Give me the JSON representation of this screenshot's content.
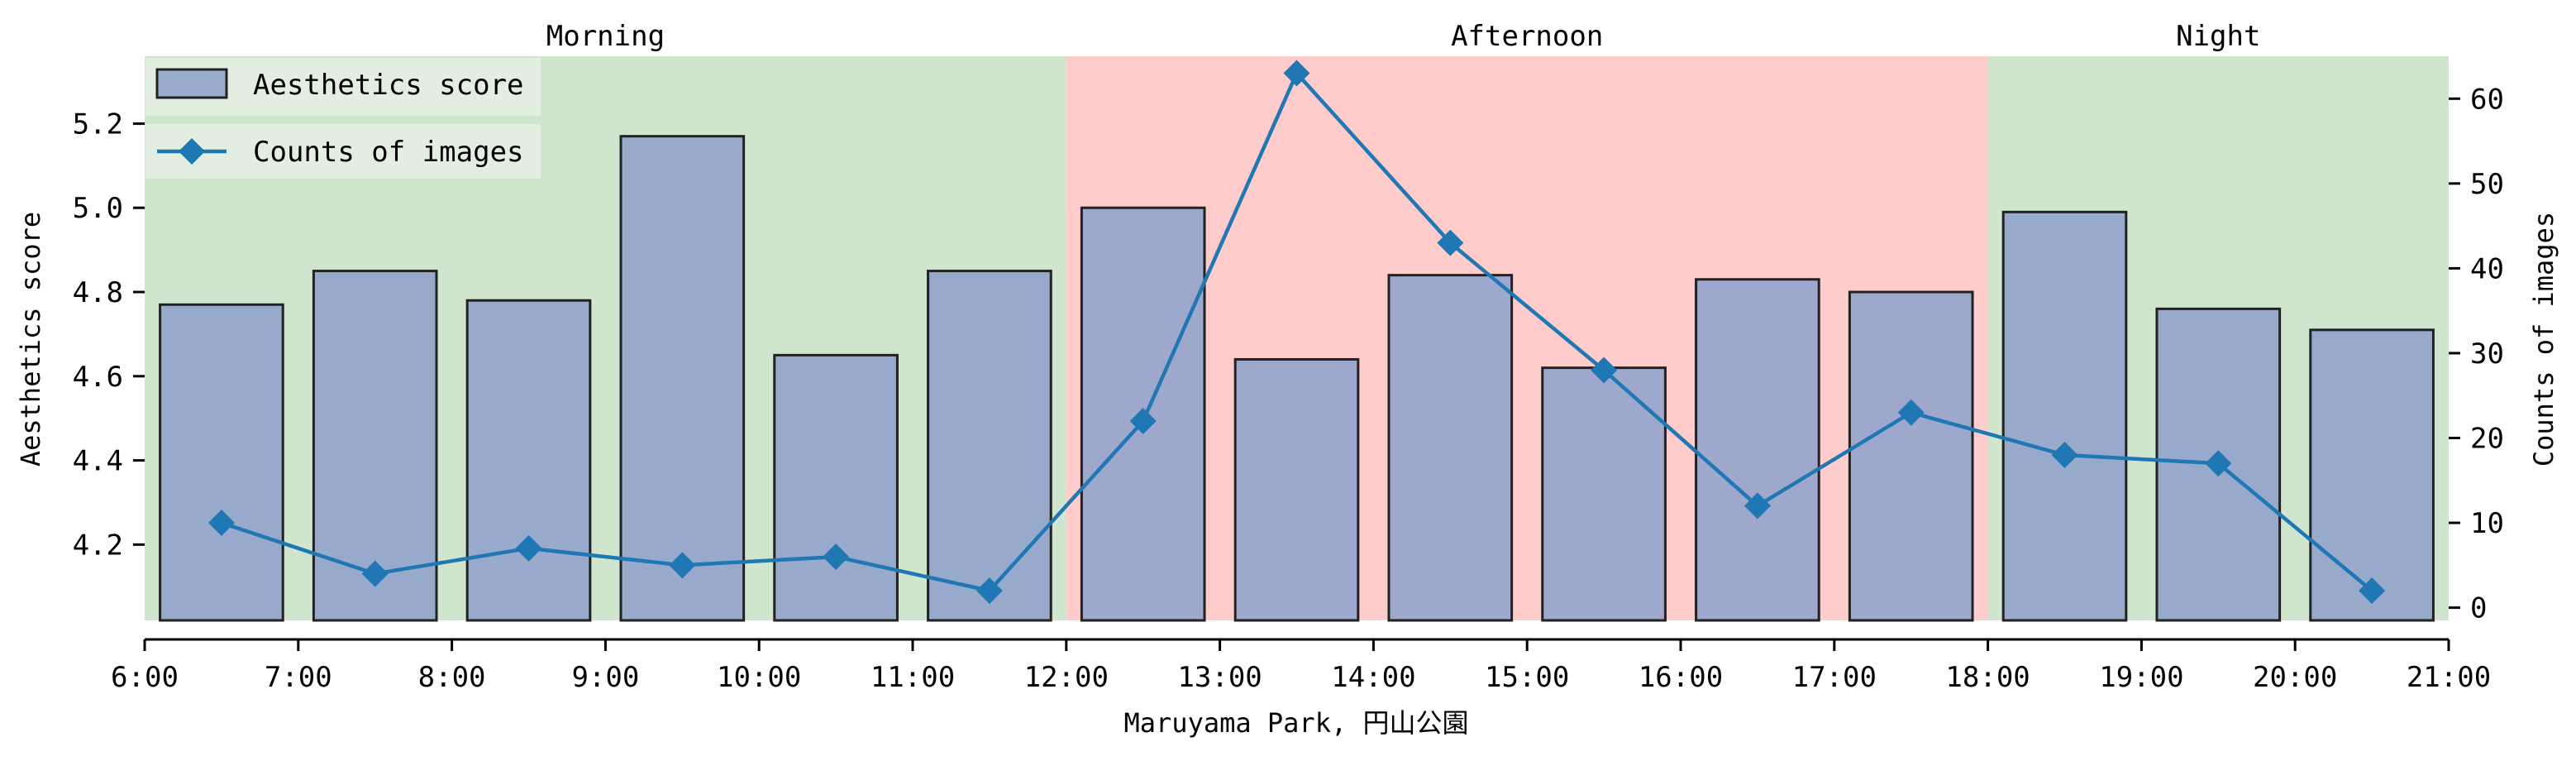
{
  "chart_data": {
    "type": "bar",
    "xlabel": "Maruyama Park, 円山公園",
    "ylabel": "Aesthetics score",
    "y2label": "Counts of images",
    "x_ticks": [
      "6:00",
      "7:00",
      "8:00",
      "9:00",
      "10:00",
      "11:00",
      "12:00",
      "13:00",
      "14:00",
      "15:00",
      "16:00",
      "17:00",
      "18:00",
      "19:00",
      "20:00",
      "21:00"
    ],
    "xlim": [
      6,
      21
    ],
    "ylim": [
      4.02,
      5.36
    ],
    "y_ticks": [
      4.2,
      4.4,
      4.6,
      4.8,
      5.0,
      5.2
    ],
    "y_tick_labels": [
      "4.2",
      "4.4",
      "4.6",
      "4.8",
      "5.0",
      "5.2"
    ],
    "y2lim": [
      -1.5,
      65
    ],
    "y2_ticks": [
      0,
      10,
      20,
      30,
      40,
      50,
      60
    ],
    "y2_tick_labels": [
      "0",
      "10",
      "20",
      "30",
      "40",
      "50",
      "60"
    ],
    "periods": [
      {
        "label": "Morning",
        "start": 6,
        "end": 12,
        "color": "#cfe5cd"
      },
      {
        "label": "Afternoon",
        "start": 12,
        "end": 18,
        "color": "#ffcccc"
      },
      {
        "label": "Night",
        "start": 18,
        "end": 21,
        "color": "#cfe5cd"
      }
    ],
    "x": [
      6.5,
      7.5,
      8.5,
      9.5,
      10.5,
      11.5,
      12.5,
      13.5,
      14.5,
      15.5,
      16.5,
      17.5,
      18.5,
      19.5,
      20.5
    ],
    "series": [
      {
        "name": "Aesthetics score",
        "type": "bar",
        "axis": "left",
        "color": "#8da0cb",
        "values": [
          4.77,
          4.85,
          4.78,
          5.17,
          4.65,
          4.85,
          5.0,
          4.64,
          4.84,
          4.62,
          4.83,
          4.8,
          4.99,
          4.76,
          4.71
        ]
      },
      {
        "name": "Counts of images",
        "type": "line",
        "axis": "right",
        "color": "#1f77b4",
        "marker": "diamond",
        "values": [
          10,
          4,
          7,
          5,
          6,
          2,
          22,
          63,
          43,
          28,
          12,
          23,
          18,
          17,
          2
        ]
      }
    ],
    "legend": {
      "placement": "top-left",
      "entries": [
        "Aesthetics score",
        "Counts of images"
      ]
    },
    "grid": false
  }
}
